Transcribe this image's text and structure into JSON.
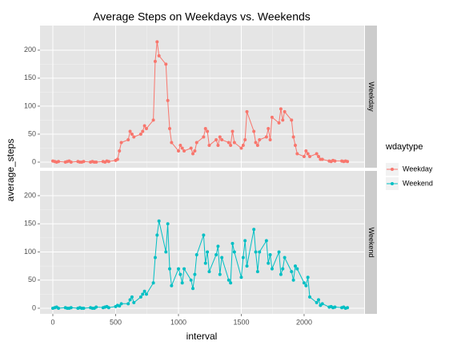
{
  "chart_data": {
    "type": "line",
    "title": "Average Steps on Weekdays vs. Weekends",
    "xlabel": "interval",
    "ylabel": "average_steps",
    "legend_title": "wdaytype",
    "x": [
      0,
      15,
      30,
      45,
      100,
      115,
      130,
      145,
      200,
      215,
      230,
      245,
      300,
      315,
      330,
      345,
      400,
      415,
      430,
      445,
      500,
      515,
      530,
      545,
      600,
      615,
      630,
      645,
      700,
      715,
      730,
      745,
      800,
      815,
      830,
      845,
      900,
      915,
      930,
      945,
      1000,
      1015,
      1030,
      1045,
      1100,
      1115,
      1130,
      1145,
      1200,
      1215,
      1230,
      1245,
      1300,
      1315,
      1330,
      1345,
      1400,
      1415,
      1430,
      1445,
      1500,
      1515,
      1530,
      1545,
      1600,
      1615,
      1630,
      1645,
      1700,
      1715,
      1730,
      1745,
      1800,
      1815,
      1830,
      1845,
      1900,
      1915,
      1930,
      1945,
      2000,
      2015,
      2030,
      2045,
      2100,
      2115,
      2130,
      2145,
      2200,
      2215,
      2230,
      2245,
      2300,
      2315,
      2330,
      2345
    ],
    "series": [
      {
        "name": "Weekday",
        "color": "#F8766D",
        "values": [
          2,
          1,
          0,
          1,
          0,
          1,
          2,
          0,
          1,
          0,
          0,
          1,
          0,
          1,
          0,
          0,
          1,
          0,
          2,
          1,
          3,
          5,
          20,
          35,
          40,
          55,
          50,
          45,
          50,
          55,
          65,
          60,
          75,
          180,
          215,
          190,
          175,
          110,
          60,
          35,
          20,
          30,
          25,
          20,
          25,
          15,
          20,
          35,
          45,
          60,
          55,
          30,
          40,
          30,
          45,
          40,
          35,
          30,
          55,
          35,
          25,
          30,
          40,
          90,
          55,
          35,
          30,
          40,
          45,
          60,
          40,
          80,
          70,
          95,
          75,
          90,
          75,
          45,
          30,
          15,
          10,
          20,
          15,
          10,
          15,
          10,
          5,
          5,
          2,
          1,
          3,
          2,
          2,
          1,
          2,
          1
        ]
      },
      {
        "name": "Weekend",
        "color": "#00BFC4",
        "values": [
          0,
          1,
          2,
          0,
          1,
          0,
          0,
          1,
          0,
          1,
          0,
          0,
          1,
          0,
          0,
          2,
          1,
          2,
          3,
          1,
          3,
          5,
          4,
          8,
          8,
          15,
          20,
          10,
          20,
          25,
          30,
          25,
          45,
          90,
          130,
          155,
          100,
          150,
          70,
          40,
          70,
          60,
          45,
          70,
          50,
          35,
          60,
          95,
          130,
          80,
          100,
          65,
          95,
          110,
          60,
          90,
          50,
          45,
          115,
          100,
          55,
          90,
          120,
          75,
          140,
          100,
          65,
          100,
          120,
          80,
          95,
          70,
          100,
          60,
          70,
          90,
          65,
          50,
          75,
          70,
          45,
          40,
          55,
          20,
          10,
          15,
          5,
          8,
          2,
          3,
          1,
          2,
          1,
          2,
          0,
          1
        ]
      }
    ],
    "xlim": [
      -102,
      2478
    ],
    "xticks": [
      0,
      500,
      1000,
      1500,
      2000
    ],
    "ylim": [
      -10,
      244
    ],
    "yticks": [
      0,
      50,
      100,
      150,
      200
    ],
    "grid": true,
    "legend": "right"
  }
}
